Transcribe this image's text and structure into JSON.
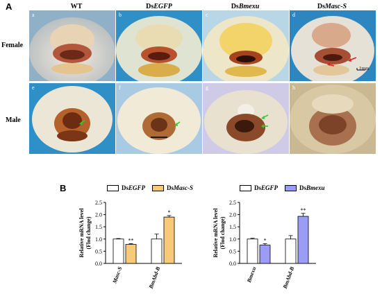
{
  "figure": {
    "panel_a": "A",
    "panel_b": "B",
    "columns": [
      {
        "prefix": "",
        "gene": "WT"
      },
      {
        "prefix": "Ds",
        "gene": "EGFP"
      },
      {
        "prefix": "Ds",
        "gene": "Bmexu"
      },
      {
        "prefix": "Ds",
        "gene": "Masc-S"
      }
    ],
    "rows": [
      "Female",
      "Male"
    ],
    "sublabels": [
      "a",
      "b",
      "c",
      "d",
      "e",
      "f",
      "g",
      "h"
    ],
    "scale_bar": "1mm"
  },
  "chart_data": [
    {
      "type": "bar",
      "legend": [
        {
          "prefix": "Ds",
          "gene": "EGFP",
          "color": "#ffffff"
        },
        {
          "prefix": "Ds",
          "gene": "Masc-S",
          "color": "#f9c97a"
        }
      ],
      "ylabel": "Relative mRNA level",
      "ylabel2": "(Flod change)",
      "ylim": [
        0,
        2.5
      ],
      "yticks": [
        "0.0",
        "0.5",
        "1.0",
        "1.5",
        "2.0",
        "2.5"
      ],
      "categories": [
        "Masc-S",
        "BmAbd-B"
      ],
      "series": [
        {
          "values": [
            1.0,
            1.0
          ],
          "errors": [
            0.02,
            0.2
          ],
          "color": "#ffffff"
        },
        {
          "values": [
            0.78,
            1.9
          ],
          "errors": [
            0.03,
            0.06
          ],
          "color": "#f9c97a"
        }
      ],
      "significance": [
        "**",
        "*"
      ]
    },
    {
      "type": "bar",
      "legend": [
        {
          "prefix": "Ds",
          "gene": "EGFP",
          "color": "#ffffff"
        },
        {
          "prefix": "Ds",
          "gene": "Bmexu",
          "color": "#9b9cf5"
        }
      ],
      "ylabel": "Relative mRNA level",
      "ylabel2": "(Flod change)",
      "ylim": [
        0,
        2.5
      ],
      "yticks": [
        "0.0",
        "0.5",
        "1.0",
        "1.5",
        "2.0",
        "2.5"
      ],
      "categories": [
        "Bmexu",
        "BmAbd-B"
      ],
      "series": [
        {
          "values": [
            1.0,
            1.0
          ],
          "errors": [
            0.03,
            0.14
          ],
          "color": "#ffffff"
        },
        {
          "values": [
            0.75,
            1.93
          ],
          "errors": [
            0.06,
            0.12
          ],
          "color": "#9b9cf5"
        }
      ],
      "significance": [
        "*",
        "**"
      ]
    }
  ]
}
